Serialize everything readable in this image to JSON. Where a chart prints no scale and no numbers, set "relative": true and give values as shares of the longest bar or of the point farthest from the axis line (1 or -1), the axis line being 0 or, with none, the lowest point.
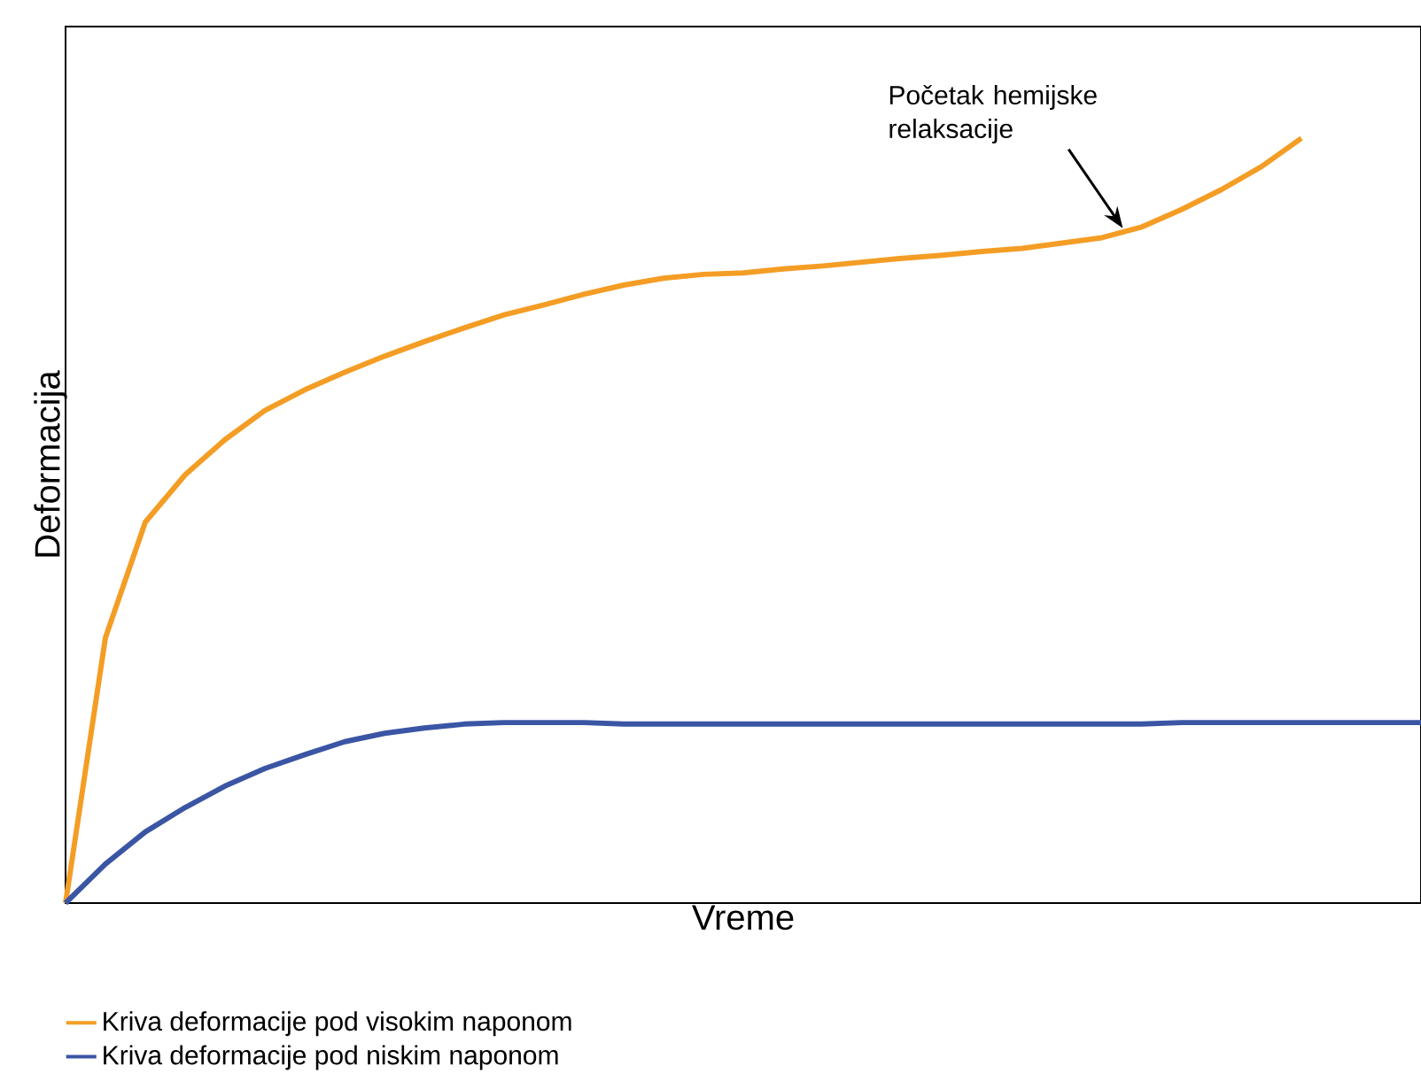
{
  "chart_data": {
    "type": "line",
    "relative": true,
    "xlabel": "Vreme",
    "ylabel": "Deformacija",
    "legend": "bottom",
    "categories": [
      null,
      null,
      null,
      null,
      null,
      null,
      null,
      null,
      null,
      null,
      null,
      null,
      null,
      null,
      null,
      null,
      null,
      null,
      null,
      null,
      null,
      null,
      null,
      null,
      null,
      null,
      null,
      null,
      null,
      null,
      null,
      null,
      null,
      null,
      null
    ],
    "series": [
      {
        "name": "Kriva deformacije pod visokim naponom",
        "color": "#f49d25",
        "values": [
          0,
          0.347,
          0.498,
          0.56,
          0.606,
          0.644,
          0.671,
          0.694,
          0.715,
          0.734,
          0.752,
          0.769,
          0.782,
          0.796,
          0.808,
          0.817,
          0.822,
          0.824,
          0.829,
          0.833,
          0.838,
          0.843,
          0.847,
          0.852,
          0.856,
          0.863,
          0.87,
          0.884,
          0.907,
          0.933,
          0.963,
          1,
          null,
          null,
          null
        ]
      },
      {
        "name": "Kriva deformacije pod niskim naponom",
        "color": "#3a55a4",
        "values": [
          0,
          0.051,
          0.093,
          0.125,
          0.153,
          0.176,
          0.194,
          0.211,
          0.222,
          0.229,
          0.234,
          0.236,
          0.236,
          0.236,
          0.234,
          0.234,
          0.234,
          0.234,
          0.234,
          0.234,
          0.234,
          0.234,
          0.234,
          0.234,
          0.234,
          0.234,
          0.234,
          0.234,
          0.236,
          0.236,
          0.236,
          0.236,
          0.236,
          0.236,
          0.236
        ]
      }
    ],
    "annotations": [
      "Početak hemijske relaksacije"
    ]
  }
}
